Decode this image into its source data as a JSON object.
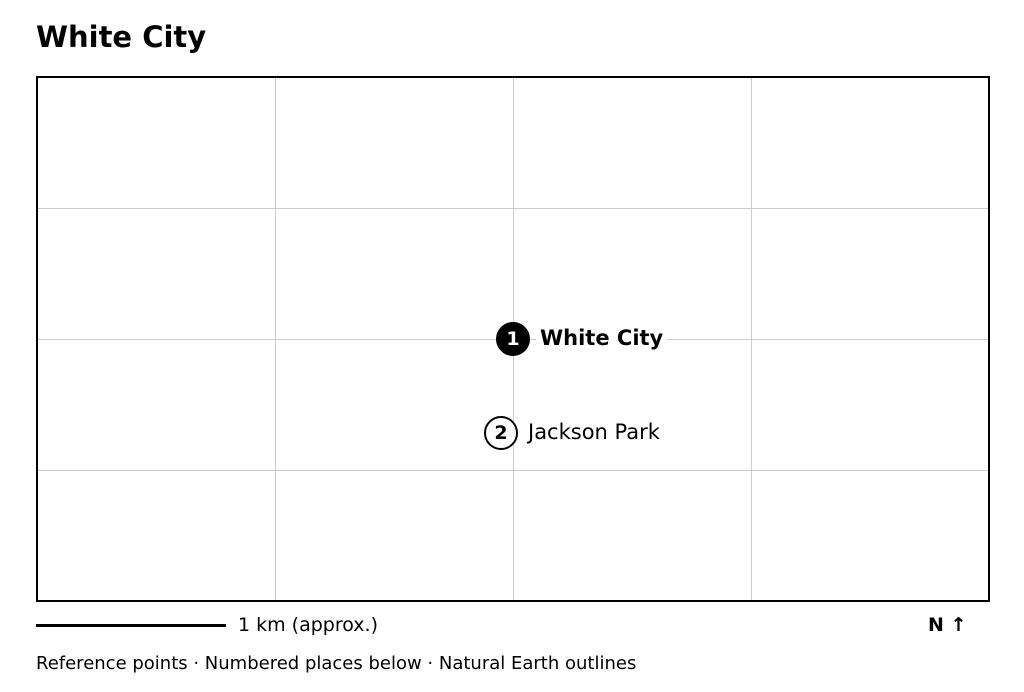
{
  "map": {
    "title": "White City",
    "places": [
      {
        "number": "1",
        "name": "White City",
        "style": "primary"
      },
      {
        "number": "2",
        "name": "Jackson Park",
        "style": "secondary"
      }
    ],
    "scale_label": "1 km (approx.)",
    "north_label": "N ↑",
    "footer": "Reference points · Numbered places below · Natural Earth outlines"
  },
  "colors": {
    "frame": "#000000",
    "grid": "#cccccc",
    "marker_primary_fill": "#000000",
    "marker_secondary_fill": "#ffffff"
  }
}
